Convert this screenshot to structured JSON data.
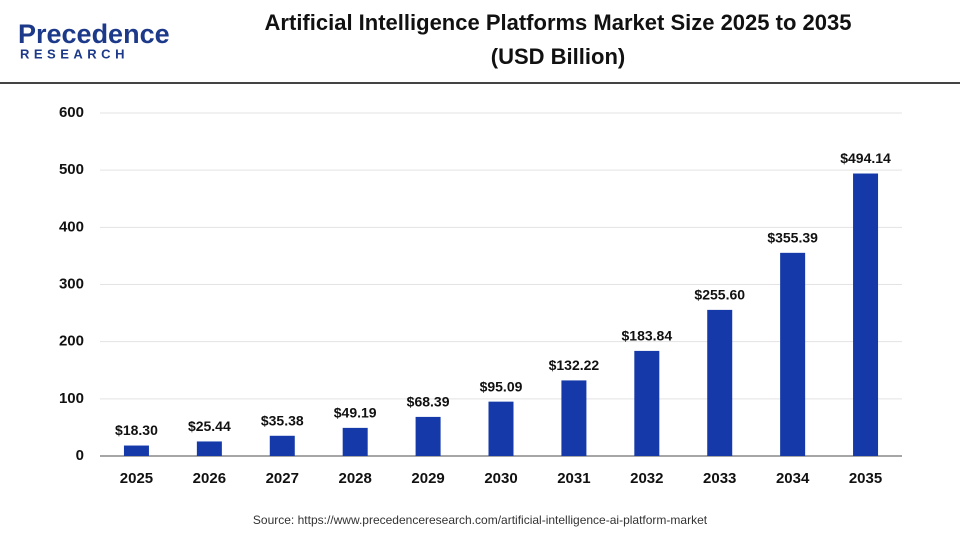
{
  "logo": {
    "name": "Precedence",
    "tagline": "RESEARCH"
  },
  "chart_data": {
    "type": "bar",
    "title": "Artificial Intelligence Platforms Market Size 2025 to 2035",
    "subtitle": "(USD Billion)",
    "categories": [
      "2025",
      "2026",
      "2027",
      "2028",
      "2029",
      "2030",
      "2031",
      "2032",
      "2033",
      "2034",
      "2035"
    ],
    "values": [
      18.3,
      25.44,
      35.38,
      49.19,
      68.39,
      95.09,
      132.22,
      183.84,
      255.6,
      355.39,
      494.14
    ],
    "value_labels": [
      "$18.30",
      "$25.44",
      "$35.38",
      "$49.19",
      "$68.39",
      "$95.09",
      "$132.22",
      "$183.84",
      "$255.60",
      "$355.39",
      "$494.14"
    ],
    "color": "#1539a9",
    "ylim": [
      0,
      600
    ],
    "yticks": [
      0,
      100,
      200,
      300,
      400,
      500,
      600
    ],
    "grid": true,
    "source": "Source: https://www.precedenceresearch.com/artificial-intelligence-ai-platform-market"
  }
}
